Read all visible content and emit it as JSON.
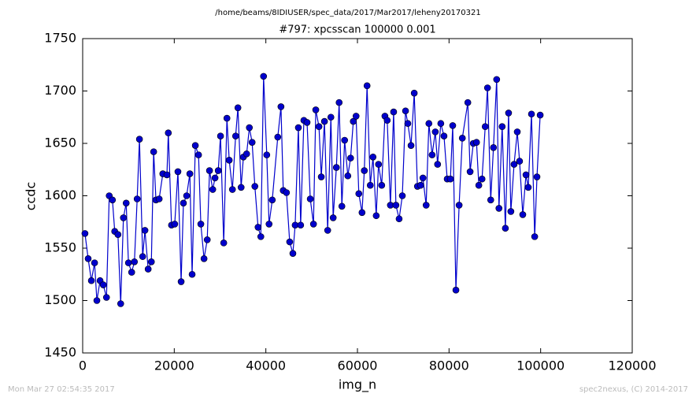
{
  "chart_data": {
    "type": "line",
    "suptitle": "/home/beams/8IDIUSER/spec_data/2017/Mar2017/leheny20170321",
    "title": "#797: xpcsscan 100000 0.001",
    "x_label": "img_n",
    "y_label": "ccdc",
    "footer_left": "Mon Mar 27 02:54:35 2017",
    "footer_right": "spec2nexus, (C) 2014-2017",
    "xlim": [
      0,
      120000
    ],
    "xticks": [
      0,
      20000,
      40000,
      60000,
      80000,
      100000,
      120000
    ],
    "ylim": [
      1450,
      1750
    ],
    "yticks": [
      1450,
      1500,
      1550,
      1600,
      1650,
      1700,
      1750
    ],
    "x": [
      500,
      1200,
      1900,
      2600,
      3100,
      3800,
      4500,
      5200,
      5800,
      6500,
      7000,
      7700,
      8300,
      8900,
      9500,
      10000,
      10700,
      11300,
      11900,
      12400,
      13100,
      13600,
      14300,
      15000,
      15500,
      16000,
      16700,
      17500,
      18400,
      18700,
      19400,
      20100,
      20800,
      21500,
      22000,
      22700,
      23400,
      23900,
      24600,
      25300,
      25800,
      26500,
      27200,
      27700,
      28400,
      28900,
      29600,
      30100,
      30800,
      31500,
      32000,
      32700,
      33400,
      33900,
      34600,
      35100,
      35800,
      36400,
      37000,
      37600,
      38300,
      38900,
      39500,
      40200,
      40700,
      41400,
      42600,
      43300,
      43800,
      44500,
      45200,
      45900,
      46400,
      47100,
      47600,
      48300,
      49000,
      49700,
      50400,
      50900,
      51600,
      52100,
      52800,
      53500,
      54200,
      54700,
      55400,
      56000,
      56600,
      57200,
      57900,
      58500,
      59100,
      59700,
      60300,
      61000,
      61500,
      62100,
      62800,
      63400,
      64100,
      64600,
      65300,
      66000,
      66500,
      67200,
      67900,
      68400,
      69100,
      69800,
      70500,
      71000,
      71700,
      72400,
      73100,
      73800,
      74300,
      75000,
      75600,
      76300,
      77000,
      77500,
      78200,
      78900,
      79600,
      80300,
      80800,
      81500,
      82200,
      82900,
      84100,
      84600,
      85300,
      86000,
      86500,
      87200,
      87900,
      88400,
      89100,
      89700,
      90400,
      90900,
      91600,
      92300,
      93000,
      93500,
      94200,
      94900,
      95400,
      96100,
      96800,
      97300,
      98000,
      98700,
      99200,
      99900
    ],
    "series": [
      {
        "color": "#0000cc",
        "values": [
          1564,
          1540,
          1519,
          1536,
          1500,
          1519,
          1515,
          1503,
          1600,
          1596,
          1566,
          1563,
          1497,
          1579,
          1593,
          1536,
          1527,
          1537,
          1597,
          1654,
          1542,
          1567,
          1530,
          1537,
          1642,
          1596,
          1597,
          1621,
          1620,
          1660,
          1572,
          1573,
          1623,
          1518,
          1593,
          1600,
          1621,
          1525,
          1648,
          1639,
          1573,
          1540,
          1558,
          1624,
          1606,
          1617,
          1624,
          1657,
          1555,
          1674,
          1634,
          1606,
          1657,
          1684,
          1608,
          1637,
          1640,
          1665,
          1651,
          1609,
          1570,
          1561,
          1714,
          1639,
          1573,
          1596,
          1656,
          1685,
          1605,
          1603,
          1556,
          1545,
          1572,
          1665,
          1572,
          1672,
          1670,
          1597,
          1573,
          1682,
          1666,
          1618,
          1671,
          1567,
          1675,
          1579,
          1627,
          1689,
          1590,
          1653,
          1619,
          1636,
          1671,
          1676,
          1602,
          1584,
          1624,
          1705,
          1610,
          1637,
          1581,
          1630,
          1610,
          1676,
          1672,
          1591,
          1680,
          1591,
          1578,
          1600,
          1681,
          1669,
          1648,
          1698,
          1609,
          1610,
          1617,
          1591,
          1669,
          1639,
          1661,
          1630,
          1669,
          1657,
          1616,
          1616,
          1667,
          1510,
          1591,
          1655,
          1689,
          1623,
          1650,
          1651,
          1610,
          1616,
          1666,
          1703,
          1596,
          1646,
          1711,
          1588,
          1666,
          1569,
          1679,
          1585,
          1630,
          1661,
          1633,
          1582,
          1620,
          1608,
          1678,
          1561,
          1618,
          1677
        ]
      }
    ]
  }
}
